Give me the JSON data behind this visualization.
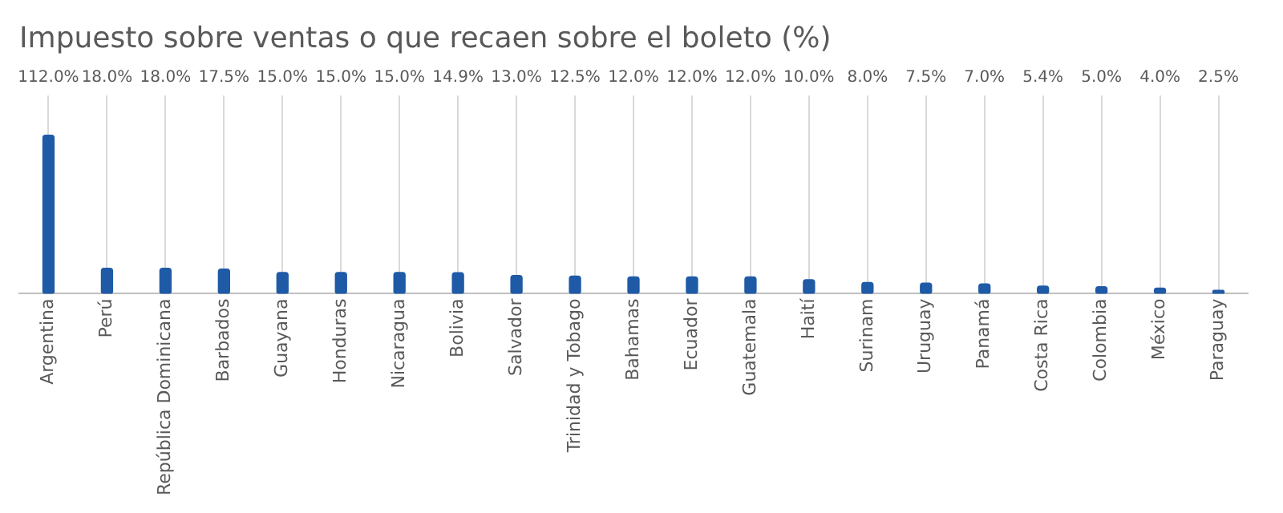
{
  "chart_data": {
    "type": "bar",
    "title": "Impuesto sobre ventas o que recaen sobre el boleto (%)",
    "categories": [
      "Argentina",
      "Perú",
      "República Dominicana",
      "Barbados",
      "Guayana",
      "Honduras",
      "Nicaragua",
      "Bolivia",
      "Salvador",
      "Trinidad y Tobago",
      "Bahamas",
      "Ecuador",
      "Guatemala",
      "Haití",
      "Surinam",
      "Uruguay",
      "Panamá",
      "Costa Rica",
      "Colombia",
      "México",
      "Paraguay"
    ],
    "values": [
      112.0,
      18.0,
      18.0,
      17.5,
      15.0,
      15.0,
      15.0,
      14.9,
      13.0,
      12.5,
      12.0,
      12.0,
      12.0,
      10.0,
      8.0,
      7.5,
      7.0,
      5.4,
      5.0,
      4.0,
      2.5
    ],
    "value_labels": [
      "112.0%",
      "18.0%",
      "18.0%",
      "17.5%",
      "15.0%",
      "15.0%",
      "15.0%",
      "14.9%",
      "13.0%",
      "12.5%",
      "12.0%",
      "12.0%",
      "12.0%",
      "10.0%",
      "8.0%",
      "7.5%",
      "7.0%",
      "5.4%",
      "5.0%",
      "4.0%",
      "2.5%"
    ],
    "color": "#1f5aa6",
    "grid": "x",
    "legend": false,
    "tick_labels": "x"
  }
}
